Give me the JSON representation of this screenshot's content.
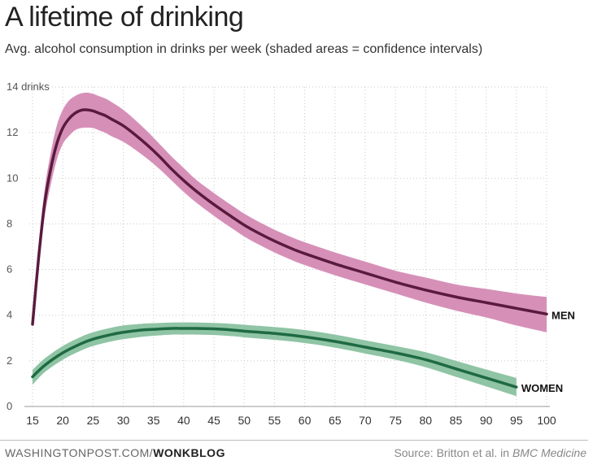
{
  "chart_data": {
    "type": "line",
    "title": "A lifetime of drinking",
    "subtitle": "Avg. alcohol consumption in drinks per week (shaded areas = confidence intervals)",
    "ytick_top_label": "14 drinks",
    "xlim": [
      15,
      100
    ],
    "ylim": [
      0,
      14
    ],
    "x_ticks": [
      15,
      20,
      25,
      30,
      35,
      40,
      45,
      50,
      55,
      60,
      65,
      70,
      75,
      80,
      85,
      90,
      95,
      100
    ],
    "y_ticks": [
      0,
      2,
      4,
      6,
      8,
      10,
      12,
      14
    ],
    "grid": true,
    "series": [
      {
        "name": "MEN",
        "line_color": "#5a1a3e",
        "band_color": "#d690b8",
        "x": [
          15,
          16,
          17,
          18,
          19,
          20,
          21,
          22,
          23,
          24,
          25,
          26,
          27,
          28,
          30,
          32,
          34,
          36,
          38,
          40,
          42,
          45,
          48,
          50,
          52,
          55,
          58,
          60,
          65,
          70,
          75,
          80,
          85,
          90,
          95,
          100
        ],
        "y": [
          3.6,
          6.5,
          8.9,
          10.4,
          11.5,
          12.2,
          12.6,
          12.85,
          12.98,
          13.0,
          12.95,
          12.85,
          12.75,
          12.6,
          12.3,
          11.9,
          11.45,
          10.95,
          10.4,
          9.9,
          9.45,
          8.85,
          8.3,
          7.95,
          7.65,
          7.25,
          6.9,
          6.7,
          6.25,
          5.85,
          5.45,
          5.1,
          4.8,
          4.55,
          4.3,
          4.05
        ],
        "upper": [
          3.6,
          7.0,
          9.5,
          11.1,
          12.3,
          13.0,
          13.4,
          13.6,
          13.72,
          13.75,
          13.7,
          13.6,
          13.5,
          13.35,
          13.0,
          12.55,
          12.05,
          11.5,
          10.95,
          10.45,
          9.95,
          9.35,
          8.8,
          8.45,
          8.15,
          7.75,
          7.4,
          7.2,
          6.75,
          6.35,
          5.95,
          5.65,
          5.35,
          5.15,
          4.95,
          4.8
        ],
        "lower": [
          3.6,
          6.0,
          8.3,
          9.7,
          10.8,
          11.5,
          11.85,
          12.1,
          12.2,
          12.22,
          12.2,
          12.1,
          12.0,
          11.85,
          11.6,
          11.25,
          10.85,
          10.4,
          9.9,
          9.4,
          8.95,
          8.35,
          7.8,
          7.45,
          7.15,
          6.75,
          6.4,
          6.2,
          5.75,
          5.35,
          4.95,
          4.55,
          4.2,
          3.9,
          3.55,
          3.25
        ]
      },
      {
        "name": "WOMEN",
        "line_color": "#1e6a43",
        "band_color": "#8fc4a4",
        "x": [
          15,
          17,
          20,
          23,
          25,
          28,
          30,
          33,
          35,
          38,
          40,
          42,
          45,
          48,
          50,
          55,
          60,
          65,
          70,
          75,
          80,
          85,
          90,
          95
        ],
        "y": [
          1.3,
          1.8,
          2.35,
          2.75,
          2.95,
          3.15,
          3.25,
          3.35,
          3.38,
          3.42,
          3.42,
          3.42,
          3.4,
          3.35,
          3.3,
          3.2,
          3.05,
          2.85,
          2.6,
          2.35,
          2.05,
          1.65,
          1.25,
          0.85
        ],
        "upper": [
          1.6,
          2.1,
          2.65,
          3.05,
          3.25,
          3.45,
          3.55,
          3.62,
          3.65,
          3.68,
          3.68,
          3.68,
          3.66,
          3.62,
          3.58,
          3.48,
          3.35,
          3.15,
          2.9,
          2.65,
          2.38,
          2.0,
          1.62,
          1.25
        ],
        "lower": [
          0.95,
          1.5,
          2.05,
          2.45,
          2.65,
          2.85,
          2.95,
          3.05,
          3.1,
          3.15,
          3.15,
          3.15,
          3.13,
          3.08,
          3.03,
          2.92,
          2.78,
          2.58,
          2.32,
          2.05,
          1.72,
          1.3,
          0.88,
          0.45
        ]
      }
    ]
  },
  "footer": {
    "source_site": "WASHINGTONPOST.COM/",
    "source_blog": "WONKBLOG",
    "credit_prefix": "Source: Britton et al. in ",
    "credit_journal": "BMC Medicine"
  }
}
